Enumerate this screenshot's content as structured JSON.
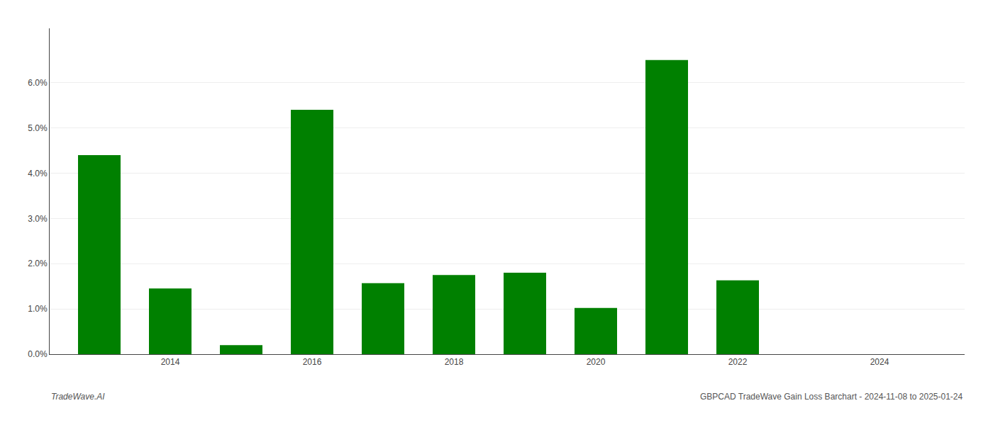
{
  "chart_data": {
    "type": "bar",
    "x": [
      2013,
      2014,
      2015,
      2016,
      2017,
      2018,
      2019,
      2020,
      2021,
      2022,
      2023
    ],
    "values": [
      4.4,
      1.45,
      0.2,
      5.4,
      1.57,
      1.75,
      1.8,
      1.02,
      6.5,
      1.63,
      0.0
    ],
    "color": "#008000",
    "xlim": [
      2012.3,
      2025.2
    ],
    "xticks": [
      2014,
      2016,
      2018,
      2020,
      2022,
      2024
    ],
    "ylim": [
      0,
      7.2
    ],
    "yticks": [
      {
        "value": 0.0,
        "label": "0.0%"
      },
      {
        "value": 1.0,
        "label": "1.0%"
      },
      {
        "value": 2.0,
        "label": "2.0%"
      },
      {
        "value": 3.0,
        "label": "3.0%"
      },
      {
        "value": 4.0,
        "label": "4.0%"
      },
      {
        "value": 5.0,
        "label": "5.0%"
      },
      {
        "value": 6.0,
        "label": "6.0%"
      }
    ],
    "grid": true,
    "annotations": [
      "TradeWave.AI",
      "GBPCAD TradeWave Gain Loss Barchart - 2024-11-08 to 2025-01-24"
    ]
  }
}
